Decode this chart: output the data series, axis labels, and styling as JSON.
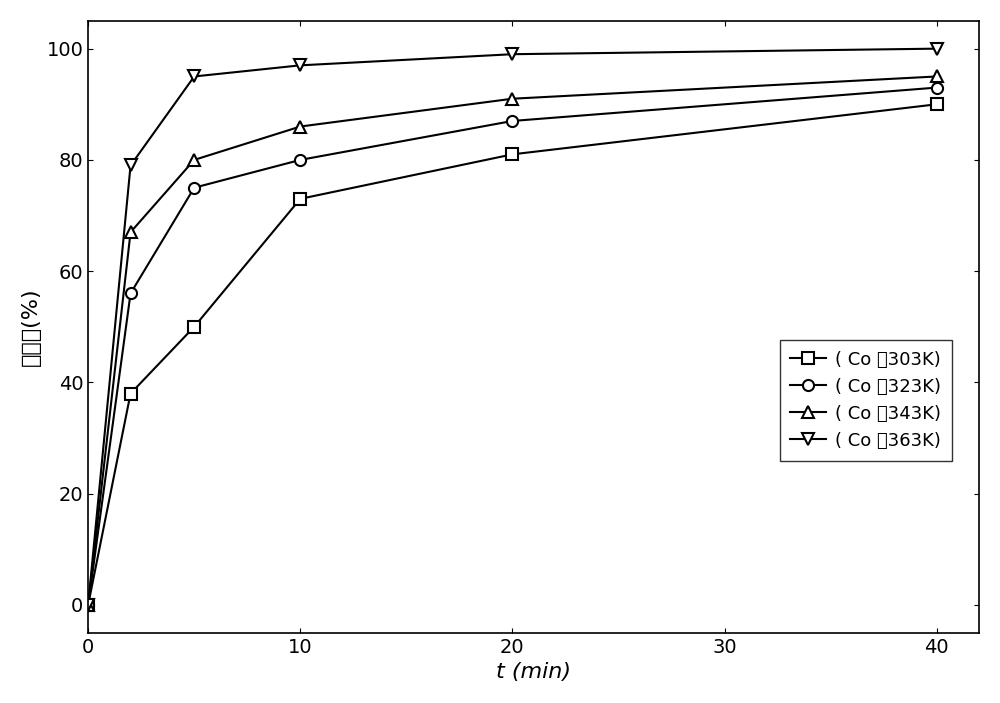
{
  "series": [
    {
      "label": "( Co 在303K)",
      "marker": "s",
      "x": [
        0,
        2,
        5,
        10,
        20,
        40
      ],
      "y": [
        0,
        38,
        50,
        73,
        81,
        90
      ]
    },
    {
      "label": "( Co 在323K)",
      "marker": "o",
      "x": [
        0,
        2,
        5,
        10,
        20,
        40
      ],
      "y": [
        0,
        56,
        75,
        80,
        87,
        93
      ]
    },
    {
      "label": "( Co 在343K)",
      "marker": "^",
      "x": [
        0,
        2,
        5,
        10,
        20,
        40
      ],
      "y": [
        0,
        67,
        80,
        86,
        91,
        95
      ]
    },
    {
      "label": "( Co 在363K)",
      "marker": "v",
      "x": [
        0,
        2,
        5,
        10,
        20,
        40
      ],
      "y": [
        0,
        79,
        95,
        97,
        99,
        100
      ]
    }
  ],
  "xlabel": "t (min)",
  "ylabel": "浸取率(%)",
  "xlim": [
    0,
    42
  ],
  "ylim": [
    -5,
    105
  ],
  "xticks": [
    0,
    10,
    20,
    30,
    40
  ],
  "yticks": [
    0,
    20,
    40,
    60,
    80,
    100
  ],
  "line_color": "#000000",
  "marker_size": 8,
  "line_width": 1.5,
  "legend_fontsize": 13,
  "axis_fontsize": 16,
  "tick_fontsize": 14,
  "background_color": "#ffffff"
}
